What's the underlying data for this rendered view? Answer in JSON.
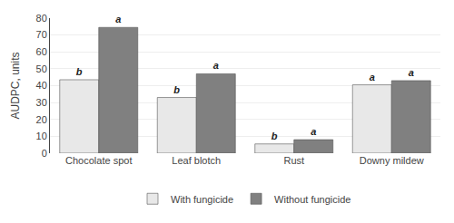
{
  "chart_data": {
    "type": "bar",
    "categories": [
      "Chocolate spot",
      "Leaf blotch",
      "Rust",
      "Downy mildew"
    ],
    "series": [
      {
        "name": "With fungicide",
        "color": "#e8e8e8",
        "values": [
          43.5,
          33.0,
          5.5,
          40.5
        ],
        "labels": [
          "b",
          "b",
          "b",
          "a"
        ]
      },
      {
        "name": "Without fungicide",
        "color": "#808080",
        "values": [
          74.5,
          47.0,
          8.0,
          43.0
        ],
        "labels": [
          "a",
          "a",
          "a",
          "a"
        ]
      }
    ],
    "ylabel": "AUDPC, units",
    "ylim": [
      0,
      80
    ],
    "yticks": [
      0,
      10,
      20,
      30,
      40,
      50,
      60,
      70,
      80
    ],
    "grid": true,
    "legend": "bottom"
  }
}
